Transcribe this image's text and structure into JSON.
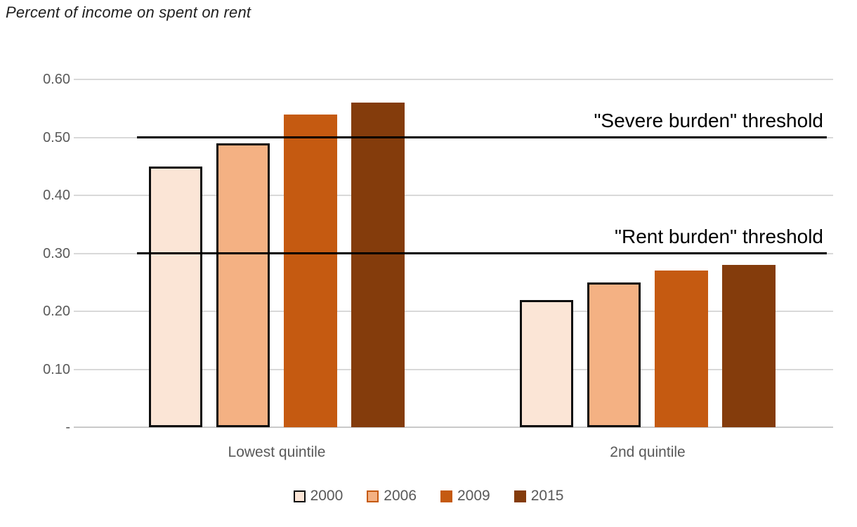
{
  "title": "Percent of income on spent on rent",
  "chart_data": {
    "type": "bar",
    "title": "Percent of income on spent on rent",
    "categories": [
      "Lowest quintile",
      "2nd quintile"
    ],
    "series": [
      {
        "name": "2000",
        "values": [
          0.45,
          0.22
        ],
        "fill": "#FBE5D6",
        "border": "#0D0D0D",
        "legend_border": "#0D0D0D"
      },
      {
        "name": "2006",
        "values": [
          0.49,
          0.25
        ],
        "fill": "#F4B183",
        "border": "#0D0D0D",
        "legend_border": "#C55A11"
      },
      {
        "name": "2009",
        "values": [
          0.54,
          0.27
        ],
        "fill": "#C55A11",
        "border": null,
        "legend_border": null
      },
      {
        "name": "2015",
        "values": [
          0.56,
          0.28
        ],
        "fill": "#843C0C",
        "border": null,
        "legend_border": null
      }
    ],
    "ylim": [
      0,
      0.6
    ],
    "yticks": [
      {
        "value": 0.6,
        "label": "0.60"
      },
      {
        "value": 0.5,
        "label": "0.50"
      },
      {
        "value": 0.4,
        "label": "0.40"
      },
      {
        "value": 0.3,
        "label": "0.30"
      },
      {
        "value": 0.2,
        "label": "0.20"
      },
      {
        "value": 0.1,
        "label": "0.10"
      },
      {
        "value": 0.0,
        "label": "-"
      }
    ],
    "annotations": [
      {
        "type": "hline",
        "value": 0.5,
        "label": "\"Severe burden\" threshold"
      },
      {
        "type": "hline",
        "value": 0.3,
        "label": "\"Rent burden\" threshold"
      }
    ],
    "grid": true,
    "legend_position": "bottom",
    "colors": {
      "gridline": "#D9D9D9",
      "axis_line": "#C9C9C9",
      "axis_text": "#595959",
      "threshold_line": "#000000",
      "threshold_text": "#000000"
    }
  }
}
